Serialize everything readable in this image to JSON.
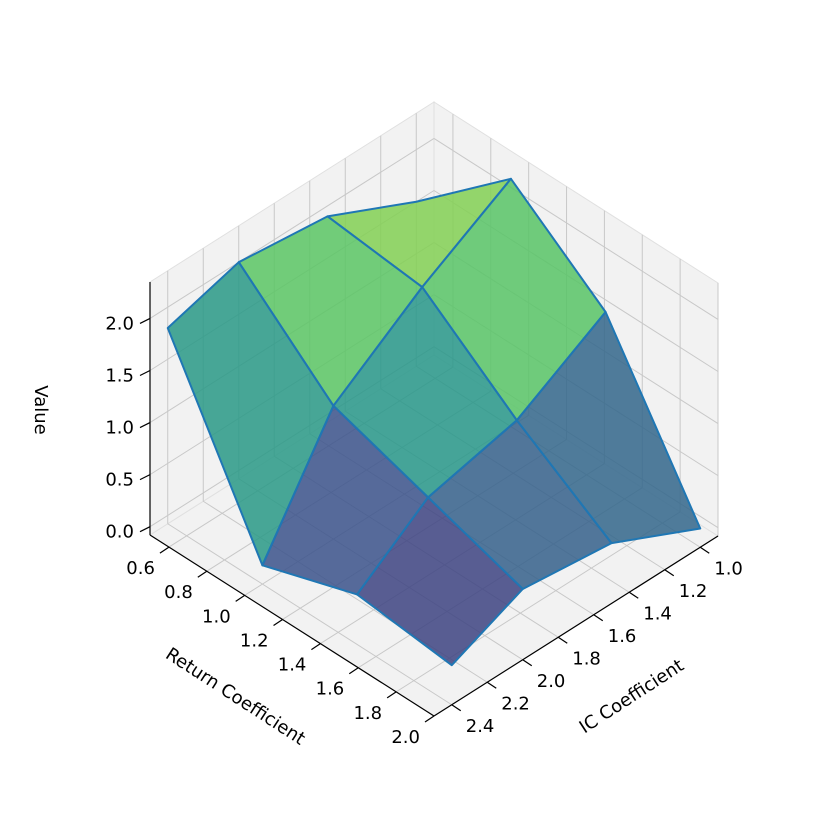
{
  "chart_data": {
    "type": "surface",
    "xlabel": "Return Coefficient",
    "ylabel": "IC Coefficient",
    "zlabel": "Value",
    "x": [
      0.5,
      1.0,
      1.5,
      2.0
    ],
    "y": [
      1.0,
      1.5,
      2.0,
      2.4
    ],
    "z": [
      [
        1.5,
        2.3,
        1.6,
        0.1
      ],
      [
        1.9,
        1.8,
        1.1,
        0.5
      ],
      [
        2.0,
        1.2,
        0.9,
        0.6
      ],
      [
        1.8,
        0.1,
        0.4,
        0.3
      ]
    ],
    "xlim": [
      0.5,
      2.0
    ],
    "ylim": [
      0.9,
      2.5
    ],
    "zlim": [
      -0.08,
      2.35
    ],
    "xticks": [
      0.6,
      0.8,
      {
        "value": 1,
        "label": "1.0"
      },
      1.2,
      1.4,
      1.6,
      1.8,
      {
        "value": 2,
        "label": "2.0"
      }
    ],
    "yticks": [
      {
        "value": 1,
        "label": "1.0"
      },
      1.2,
      1.4,
      1.6,
      1.8,
      {
        "value": 2,
        "label": "2.0"
      },
      2.2,
      2.4
    ],
    "zticks": [
      {
        "value": 0,
        "label": "0.0"
      },
      0.5,
      {
        "value": 1,
        "label": "1.0"
      },
      1.5,
      {
        "value": 2,
        "label": "2.0"
      }
    ],
    "colormap": "viridis",
    "edgecolor": "#1f77b4",
    "grid": true
  }
}
